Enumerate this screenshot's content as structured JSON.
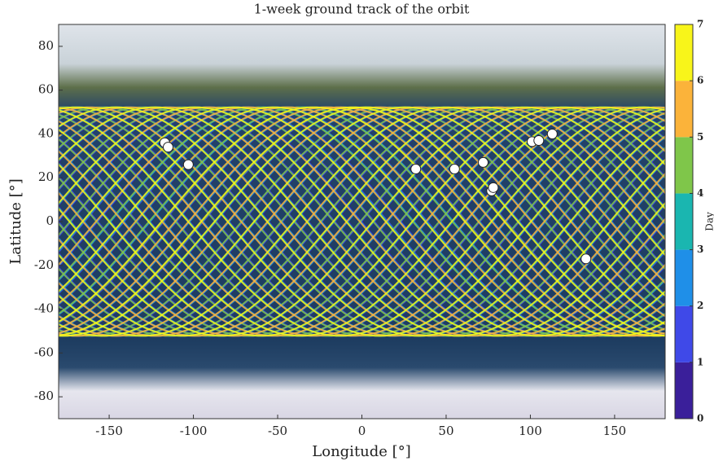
{
  "chart_data": {
    "type": "scatter",
    "title": "1-week ground track of the orbit",
    "x_label": "Longitude [°]",
    "y_label": "Latitude [°]",
    "xlim": [
      -180,
      180
    ],
    "xticks": [
      -150,
      -100,
      -50,
      0,
      50,
      100,
      150
    ],
    "ylim": [
      -90,
      90
    ],
    "yticks": [
      -80,
      -60,
      -40,
      -20,
      0,
      20,
      40,
      60,
      80
    ],
    "x": [
      -117,
      -115,
      -103,
      32,
      55,
      72,
      77,
      78,
      101,
      105,
      113,
      133
    ],
    "values": [
      36,
      34,
      26,
      24,
      24,
      27,
      14,
      15.5,
      36.5,
      37,
      40,
      -17
    ],
    "color": "#ffffff",
    "colorbar": {
      "label": "Day",
      "lim": [
        0,
        7
      ],
      "ticks": [
        0,
        1,
        2,
        3,
        4,
        5,
        6,
        7
      ],
      "colors": [
        "#3a1f9a",
        "#3f49e8",
        "#1f8fe8",
        "#1ab6b0",
        "#7fc64a",
        "#fbb33a",
        "#f8f51a"
      ]
    }
  }
}
